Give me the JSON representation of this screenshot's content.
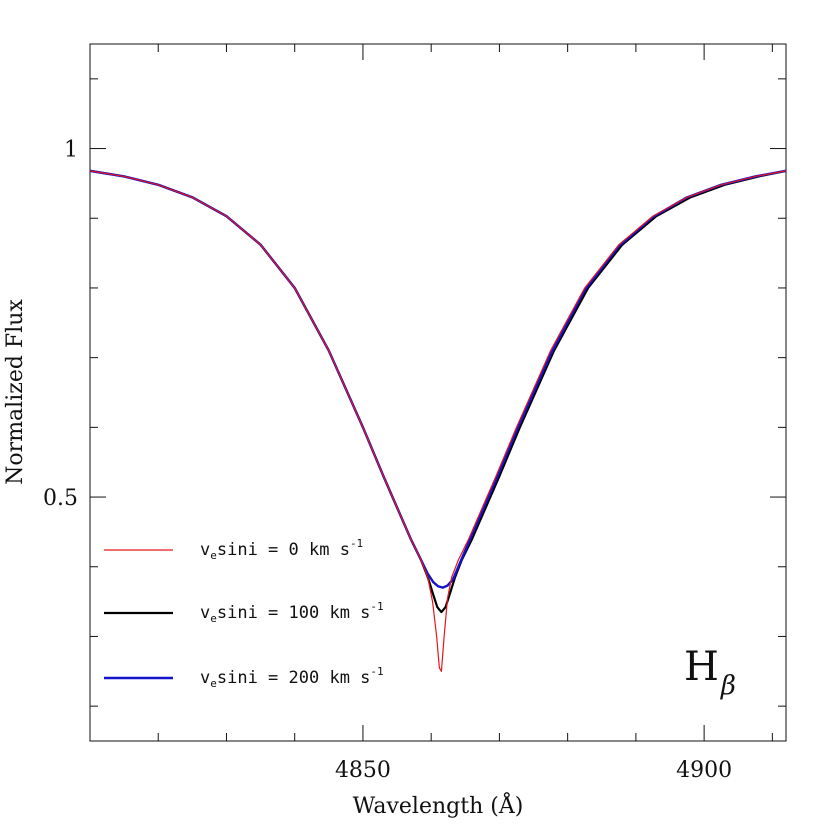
{
  "chart_data": {
    "type": "line",
    "xlabel": "Wavelength (Å)",
    "ylabel": "Normalized Flux",
    "xlim": [
      4810,
      4912
    ],
    "ylim": [
      0.15,
      1.15
    ],
    "x_ticks": [
      4850,
      4900
    ],
    "y_ticks": [
      0.5,
      1
    ],
    "x_tick_labels": [
      "4850",
      "4900"
    ],
    "y_tick_labels": [
      "0.5",
      "1"
    ],
    "annotation": {
      "base": "H",
      "subscript": "β"
    },
    "legend_position": "lower-left",
    "line_center": 4861.3,
    "series": [
      {
        "label_base": "v",
        "label_sub": "e",
        "label_main": "sini = 0 km s",
        "label_sup": "-1",
        "color": "#e8161b",
        "core_min": 0.25,
        "points": [
          [
            4810,
            0.968
          ],
          [
            4815,
            0.96
          ],
          [
            4820,
            0.948
          ],
          [
            4825,
            0.93
          ],
          [
            4830,
            0.903
          ],
          [
            4835,
            0.862
          ],
          [
            4840,
            0.8
          ],
          [
            4845,
            0.71
          ],
          [
            4850,
            0.6
          ],
          [
            4853,
            0.53
          ],
          [
            4855,
            0.485
          ],
          [
            4857,
            0.44
          ],
          [
            4858.5,
            0.41
          ],
          [
            4859.5,
            0.385
          ],
          [
            4860.2,
            0.35
          ],
          [
            4860.8,
            0.3
          ],
          [
            4861.2,
            0.255
          ],
          [
            4861.5,
            0.25
          ],
          [
            4861.9,
            0.3
          ],
          [
            4862.4,
            0.355
          ],
          [
            4863,
            0.385
          ],
          [
            4864,
            0.41
          ],
          [
            4865.5,
            0.44
          ],
          [
            4867.5,
            0.485
          ],
          [
            4869.5,
            0.53
          ],
          [
            4872.5,
            0.6
          ],
          [
            4877.5,
            0.71
          ],
          [
            4882.5,
            0.8
          ],
          [
            4887.5,
            0.862
          ],
          [
            4892.5,
            0.903
          ],
          [
            4897.5,
            0.93
          ],
          [
            4902.5,
            0.948
          ],
          [
            4907.5,
            0.96
          ],
          [
            4912,
            0.968
          ]
        ]
      },
      {
        "label_base": "v",
        "label_sub": "e",
        "label_main": "sini = 100 km s",
        "label_sup": "-1",
        "color": "#000000",
        "core_min": 0.335,
        "points": [
          [
            4810,
            0.968
          ],
          [
            4815,
            0.96
          ],
          [
            4820,
            0.948
          ],
          [
            4825,
            0.93
          ],
          [
            4830,
            0.903
          ],
          [
            4835,
            0.862
          ],
          [
            4840,
            0.8
          ],
          [
            4845,
            0.71
          ],
          [
            4850,
            0.6
          ],
          [
            4853,
            0.53
          ],
          [
            4855,
            0.485
          ],
          [
            4857,
            0.44
          ],
          [
            4858.5,
            0.41
          ],
          [
            4859.5,
            0.385
          ],
          [
            4860.3,
            0.36
          ],
          [
            4860.9,
            0.342
          ],
          [
            4861.5,
            0.335
          ],
          [
            4862.1,
            0.342
          ],
          [
            4862.7,
            0.36
          ],
          [
            4863.5,
            0.385
          ],
          [
            4864.5,
            0.41
          ],
          [
            4866,
            0.44
          ],
          [
            4868,
            0.485
          ],
          [
            4870,
            0.53
          ],
          [
            4873,
            0.6
          ],
          [
            4878,
            0.71
          ],
          [
            4883,
            0.8
          ],
          [
            4888,
            0.862
          ],
          [
            4893,
            0.903
          ],
          [
            4898,
            0.93
          ],
          [
            4903,
            0.948
          ],
          [
            4908,
            0.96
          ],
          [
            4912,
            0.968
          ]
        ]
      },
      {
        "label_base": "v",
        "label_sub": "e",
        "label_main": "sini = 200 km s",
        "label_sup": "-1",
        "color": "#1414cc",
        "core_min": 0.37,
        "points": [
          [
            4810,
            0.968
          ],
          [
            4815,
            0.96
          ],
          [
            4820,
            0.948
          ],
          [
            4825,
            0.93
          ],
          [
            4830,
            0.903
          ],
          [
            4835,
            0.862
          ],
          [
            4840,
            0.8
          ],
          [
            4845,
            0.71
          ],
          [
            4850,
            0.6
          ],
          [
            4853,
            0.53
          ],
          [
            4855,
            0.485
          ],
          [
            4857,
            0.44
          ],
          [
            4858.5,
            0.41
          ],
          [
            4859.5,
            0.39
          ],
          [
            4860.3,
            0.378
          ],
          [
            4861,
            0.372
          ],
          [
            4861.7,
            0.37
          ],
          [
            4862.4,
            0.373
          ],
          [
            4863.2,
            0.382
          ],
          [
            4864.2,
            0.405
          ],
          [
            4865.5,
            0.435
          ],
          [
            4867.5,
            0.48
          ],
          [
            4869.5,
            0.525
          ],
          [
            4872.5,
            0.595
          ],
          [
            4877.5,
            0.705
          ],
          [
            4882.5,
            0.797
          ],
          [
            4887.5,
            0.86
          ],
          [
            4892.5,
            0.902
          ],
          [
            4897.5,
            0.93
          ],
          [
            4902.5,
            0.948
          ],
          [
            4907.5,
            0.96
          ],
          [
            4912,
            0.968
          ]
        ]
      }
    ]
  }
}
